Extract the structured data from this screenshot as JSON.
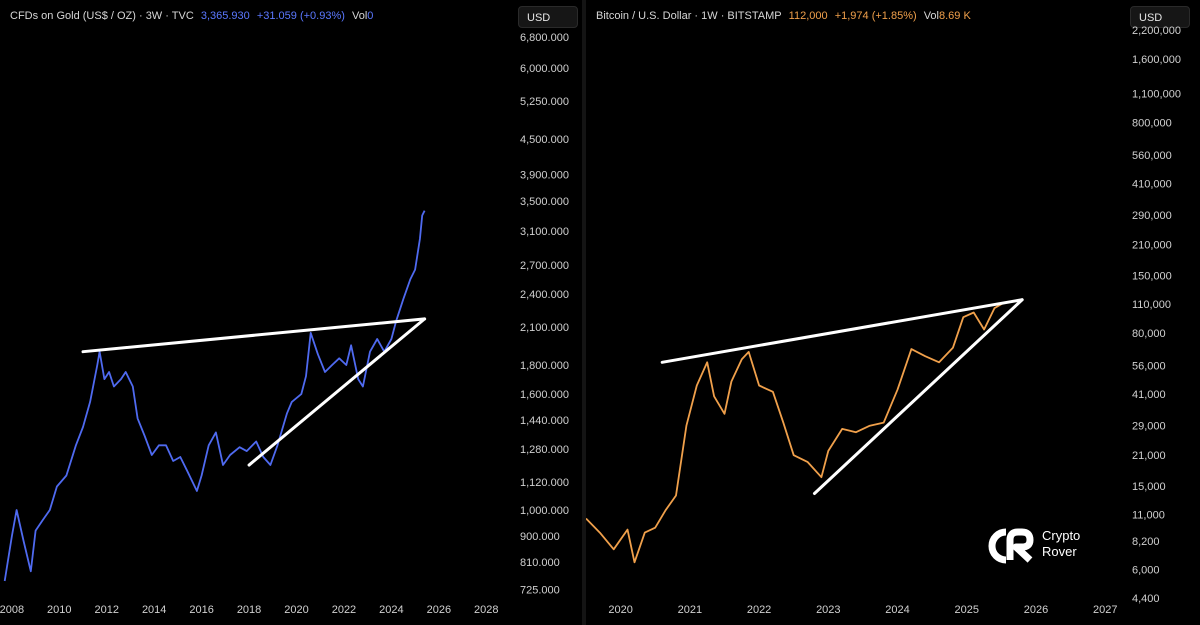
{
  "left": {
    "header": {
      "symbol": "CFDs on Gold (US$ / OZ) · 3W · TVC",
      "price": "3,365.930",
      "change": "+31.059 (+0.93%)",
      "vol_label": "Vol",
      "vol_value": "0"
    },
    "currency": "USD",
    "colors": {
      "line": "#4f6af0",
      "price": "#5b78ff"
    }
  },
  "right": {
    "header": {
      "symbol": "Bitcoin / U.S. Dollar · 1W · BITSTAMP",
      "price": "112,000",
      "change": "+1,974 (+1.85%)",
      "vol_label": "Vol",
      "vol_value": "8.69 K"
    },
    "currency": "USD",
    "colors": {
      "line": "#f0a04b",
      "price": "#f0a04b"
    }
  },
  "logo": {
    "line1": "Crypto",
    "line2": "Rover"
  },
  "chart_data": [
    {
      "type": "line",
      "title": "CFDs on Gold (US$ / OZ) · 3W · TVC",
      "xlabel": "",
      "ylabel": "",
      "y_scale": "log",
      "xlim": [
        2007.5,
        2029
      ],
      "ylim": [
        700,
        7000
      ],
      "x_ticks": [
        "2008",
        "2010",
        "2012",
        "2014",
        "2016",
        "2018",
        "2020",
        "2022",
        "2024",
        "2026",
        "2028"
      ],
      "y_ticks": [
        725,
        810,
        900,
        1000,
        1120,
        1280,
        1440,
        1600,
        1800,
        2100,
        2400,
        2700,
        3100,
        3500,
        3900,
        4500,
        5250,
        6000,
        6800
      ],
      "y_tick_labels": [
        "725.000",
        "810.000",
        "900.000",
        "1,000.000",
        "1,120.000",
        "1,280.000",
        "1,440.000",
        "1,600.000",
        "1,800.000",
        "2,100.000",
        "2,400.000",
        "2,700.000",
        "3,100.000",
        "3,500.000",
        "3,900.000",
        "4,500.000",
        "5,250.000",
        "6,000.000",
        "6,800.000"
      ],
      "grid": false,
      "series": [
        {
          "x": [
            2007.7,
            2008.0,
            2008.2,
            2008.5,
            2008.8,
            2009.0,
            2009.3,
            2009.6,
            2009.9,
            2010.3,
            2010.7,
            2011.0,
            2011.3,
            2011.6,
            2011.7,
            2011.9,
            2012.1,
            2012.3,
            2012.6,
            2012.8,
            2013.1,
            2013.3,
            2013.6,
            2013.9,
            2014.2,
            2014.5,
            2014.8,
            2015.1,
            2015.4,
            2015.8,
            2016.0,
            2016.3,
            2016.6,
            2016.9,
            2017.2,
            2017.6,
            2017.9,
            2018.3,
            2018.6,
            2018.9,
            2019.2,
            2019.6,
            2019.8,
            2020.2,
            2020.4,
            2020.6,
            2020.9,
            2021.2,
            2021.5,
            2021.8,
            2022.1,
            2022.3,
            2022.6,
            2022.8,
            2023.1,
            2023.4,
            2023.7,
            2024.0,
            2024.2,
            2024.5,
            2024.8,
            2025.0,
            2025.2,
            2025.3,
            2025.4
          ],
          "y": [
            750,
            900,
            1000,
            880,
            780,
            920,
            960,
            1000,
            1100,
            1150,
            1300,
            1400,
            1550,
            1800,
            1900,
            1700,
            1750,
            1650,
            1700,
            1750,
            1650,
            1450,
            1350,
            1250,
            1300,
            1300,
            1220,
            1240,
            1170,
            1080,
            1150,
            1300,
            1370,
            1200,
            1250,
            1290,
            1270,
            1320,
            1240,
            1200,
            1300,
            1480,
            1550,
            1600,
            1720,
            2050,
            1880,
            1750,
            1800,
            1850,
            1800,
            1950,
            1700,
            1650,
            1900,
            2000,
            1900,
            2000,
            2150,
            2350,
            2550,
            2650,
            3000,
            3300,
            3365
          ]
        }
      ],
      "annotations": [
        {
          "type": "trendline",
          "x": [
            2011.0,
            2025.4
          ],
          "y": [
            1900,
            2170
          ]
        },
        {
          "type": "trendline",
          "x": [
            2018.0,
            2025.4
          ],
          "y": [
            1200,
            2170
          ]
        }
      ]
    },
    {
      "type": "line",
      "title": "Bitcoin / U.S. Dollar · 1W · BITSTAMP",
      "xlabel": "",
      "ylabel": "",
      "y_scale": "log",
      "xlim": [
        2019.5,
        2027.3
      ],
      "ylim": [
        4400,
        2200000
      ],
      "x_ticks": [
        "2020",
        "2021",
        "2022",
        "2023",
        "2024",
        "2025",
        "2026",
        "2027"
      ],
      "y_ticks": [
        4400,
        6000,
        8200,
        11000,
        15000,
        21000,
        29000,
        41000,
        56000,
        80000,
        110000,
        150000,
        210000,
        290000,
        410000,
        560000,
        800000,
        1100000,
        1600000,
        2200000
      ],
      "y_tick_labels": [
        "4,400",
        "6,000",
        "8,200",
        "11,000",
        "15,000",
        "21,000",
        "29,000",
        "41,000",
        "56,000",
        "80,000",
        "110,000",
        "150,000",
        "210,000",
        "290,000",
        "410,000",
        "560,000",
        "800,000",
        "1,100,000",
        "1,600,000",
        "2,200,000"
      ],
      "grid": false,
      "series": [
        {
          "x": [
            2019.5,
            2019.7,
            2019.9,
            2020.1,
            2020.2,
            2020.35,
            2020.5,
            2020.65,
            2020.8,
            2020.95,
            2021.1,
            2021.25,
            2021.35,
            2021.5,
            2021.6,
            2021.75,
            2021.85,
            2022.0,
            2022.2,
            2022.35,
            2022.5,
            2022.7,
            2022.9,
            2023.0,
            2023.2,
            2023.4,
            2023.6,
            2023.8,
            2024.0,
            2024.2,
            2024.4,
            2024.6,
            2024.8,
            2024.95,
            2025.1,
            2025.25,
            2025.4,
            2025.55
          ],
          "y": [
            10500,
            9000,
            7500,
            9300,
            6500,
            9000,
            9500,
            11500,
            13500,
            29000,
            45000,
            58000,
            40000,
            33000,
            47000,
            60000,
            65000,
            45000,
            42000,
            30000,
            21000,
            19500,
            16500,
            22000,
            28000,
            27000,
            29000,
            30000,
            43000,
            67000,
            62000,
            58000,
            68000,
            95000,
            100000,
            83000,
            105000,
            112000
          ]
        }
      ],
      "annotations": [
        {
          "type": "trendline",
          "x": [
            2020.6,
            2025.8
          ],
          "y": [
            58000,
            115000
          ]
        },
        {
          "type": "trendline",
          "x": [
            2022.8,
            2025.8
          ],
          "y": [
            13800,
            115000
          ]
        }
      ]
    }
  ]
}
